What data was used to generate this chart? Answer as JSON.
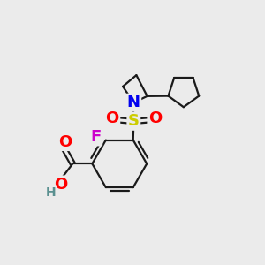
{
  "background_color": "#ebebeb",
  "bond_color": "#1a1a1a",
  "atom_colors": {
    "N": "#0000ee",
    "S": "#cccc00",
    "O": "#ff0000",
    "F": "#cc00cc",
    "H": "#5a9090",
    "C": "#1a1a1a"
  },
  "font_size_atoms": 13,
  "font_size_H": 10,
  "lw": 1.6
}
